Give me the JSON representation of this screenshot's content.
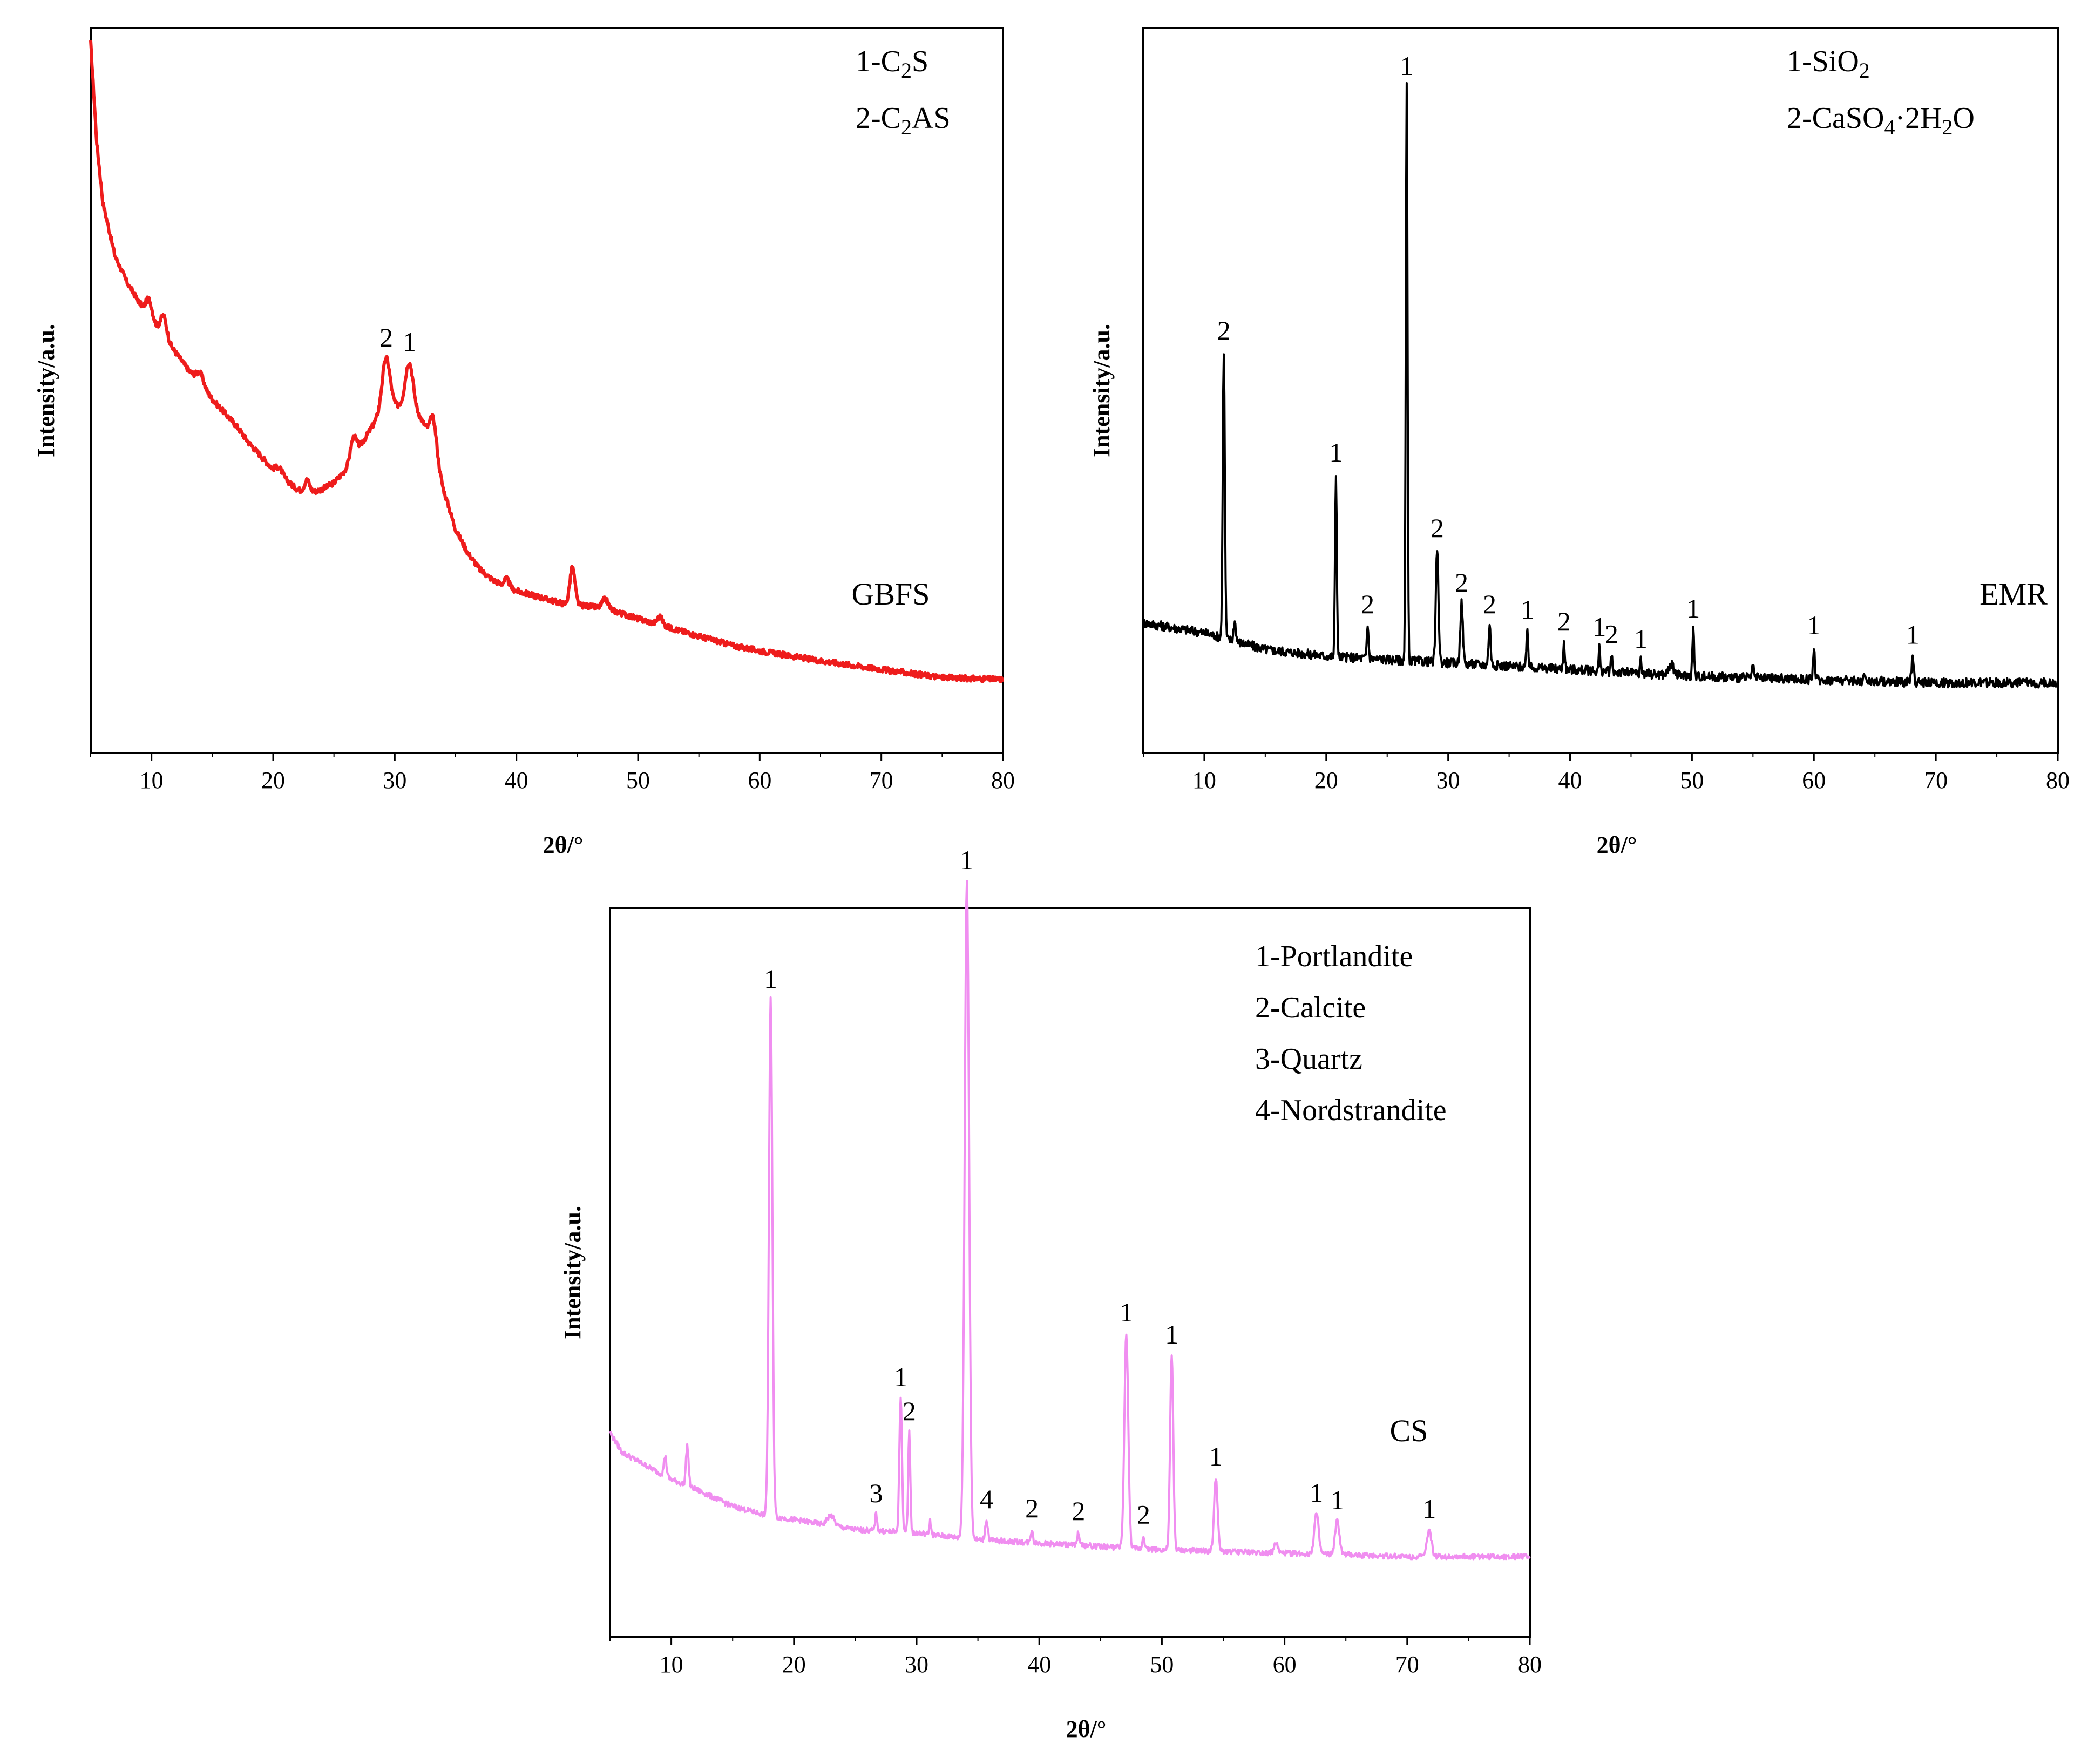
{
  "chart_data": [
    {
      "id": "gbfs",
      "type": "line",
      "sample_label": "GBFS",
      "color": "#ee1c1c",
      "xlabel": "2θ/°",
      "ylabel": "Intensity/a.u.",
      "xlim": [
        5,
        80
      ],
      "ylim": [
        0,
        1
      ],
      "xticks": [
        10,
        20,
        30,
        40,
        50,
        60,
        70,
        80
      ],
      "legend": [
        {
          "prefix": "1-C",
          "sub": "2",
          "suffix": "S"
        },
        {
          "prefix": "2-C",
          "sub": "2",
          "suffix": "AS"
        }
      ],
      "peaks": [
        {
          "x": 29.3,
          "label": "2"
        },
        {
          "x": 31.2,
          "label": "1"
        }
      ],
      "profile": [
        [
          5,
          1.0
        ],
        [
          5.5,
          0.85
        ],
        [
          6,
          0.76
        ],
        [
          7,
          0.68
        ],
        [
          8,
          0.64
        ],
        [
          9,
          0.61
        ],
        [
          10,
          0.585
        ],
        [
          11,
          0.56
        ],
        [
          12,
          0.535
        ],
        [
          13,
          0.51
        ],
        [
          14,
          0.49
        ],
        [
          15,
          0.465
        ],
        [
          16,
          0.445
        ],
        [
          17,
          0.425
        ],
        [
          18,
          0.4
        ],
        [
          19,
          0.38
        ],
        [
          20,
          0.36
        ],
        [
          21,
          0.345
        ],
        [
          22,
          0.33
        ],
        [
          23,
          0.325
        ],
        [
          24,
          0.33
        ],
        [
          25,
          0.34
        ],
        [
          26,
          0.36
        ],
        [
          27,
          0.39
        ],
        [
          28,
          0.42
        ],
        [
          29,
          0.45
        ],
        [
          30,
          0.455
        ],
        [
          31,
          0.455
        ],
        [
          32,
          0.44
        ],
        [
          33,
          0.41
        ],
        [
          34,
          0.33
        ],
        [
          35,
          0.27
        ],
        [
          36,
          0.235
        ],
        [
          37,
          0.21
        ],
        [
          38,
          0.195
        ],
        [
          39,
          0.185
        ],
        [
          40,
          0.178
        ],
        [
          42,
          0.168
        ],
        [
          44,
          0.158
        ],
        [
          46,
          0.155
        ],
        [
          48,
          0.148
        ],
        [
          50,
          0.136
        ],
        [
          52,
          0.126
        ],
        [
          55,
          0.11
        ],
        [
          58,
          0.095
        ],
        [
          60,
          0.088
        ],
        [
          65,
          0.073
        ],
        [
          70,
          0.06
        ],
        [
          75,
          0.048
        ],
        [
          80,
          0.045
        ]
      ],
      "bumps": [
        [
          9.8,
          0.025,
          0.35
        ],
        [
          11,
          0.03,
          0.35
        ],
        [
          14,
          0.015,
          0.4
        ],
        [
          20.5,
          0.01,
          0.4
        ],
        [
          22.8,
          0.018,
          0.3
        ],
        [
          26.6,
          0.03,
          0.35
        ],
        [
          29.3,
          0.075,
          0.45
        ],
        [
          31.2,
          0.068,
          0.45
        ],
        [
          33.2,
          0.04,
          0.35
        ],
        [
          39.2,
          0.012,
          0.3
        ],
        [
          44.6,
          0.055,
          0.3
        ],
        [
          47.3,
          0.015,
          0.35
        ],
        [
          51.8,
          0.012,
          0.3
        ]
      ],
      "noise": 0.004
    },
    {
      "id": "emr",
      "type": "line",
      "sample_label": "EMR",
      "color": "#000000",
      "xlabel": "2θ/°",
      "ylabel": "Intensity/a.u.",
      "xlim": [
        5,
        80
      ],
      "ylim": [
        0,
        1
      ],
      "xticks": [
        10,
        20,
        30,
        40,
        50,
        60,
        70,
        80
      ],
      "legend": [
        {
          "prefix": "1-SiO",
          "sub": "2",
          "suffix": ""
        },
        {
          "prefix": "2-CaSO",
          "sub": "4",
          "suffix": "·2H",
          "sub2": "2",
          "suffix2": "O"
        }
      ],
      "peaks": [
        {
          "x": 11.6,
          "label": "2"
        },
        {
          "x": 20.8,
          "label": "1"
        },
        {
          "x": 23.4,
          "label": "2"
        },
        {
          "x": 26.6,
          "label": "1"
        },
        {
          "x": 29.1,
          "label": "2"
        },
        {
          "x": 31.1,
          "label": "2"
        },
        {
          "x": 33.4,
          "label": "2"
        },
        {
          "x": 36.5,
          "label": "1"
        },
        {
          "x": 39.5,
          "label": "2"
        },
        {
          "x": 42.4,
          "label": "1"
        },
        {
          "x": 43.4,
          "label": "2"
        },
        {
          "x": 45.8,
          "label": "1"
        },
        {
          "x": 50.1,
          "label": "1"
        },
        {
          "x": 60.0,
          "label": "1"
        },
        {
          "x": 68.1,
          "label": "1"
        }
      ],
      "profile": [
        [
          5,
          0.13
        ],
        [
          10,
          0.115
        ],
        [
          15,
          0.09
        ],
        [
          20,
          0.08
        ],
        [
          25,
          0.075
        ],
        [
          30,
          0.07
        ],
        [
          40,
          0.06
        ],
        [
          50,
          0.05
        ],
        [
          60,
          0.045
        ],
        [
          70,
          0.04
        ],
        [
          80,
          0.04
        ]
      ],
      "bumps": [
        [
          11.6,
          0.43,
          0.12
        ],
        [
          12.5,
          0.03,
          0.12
        ],
        [
          20.8,
          0.275,
          0.1
        ],
        [
          23.4,
          0.05,
          0.1
        ],
        [
          26.6,
          0.86,
          0.1
        ],
        [
          29.1,
          0.17,
          0.15
        ],
        [
          31.1,
          0.09,
          0.15
        ],
        [
          33.4,
          0.06,
          0.12
        ],
        [
          36.5,
          0.055,
          0.1
        ],
        [
          39.5,
          0.04,
          0.1
        ],
        [
          42.4,
          0.035,
          0.08
        ],
        [
          43.4,
          0.025,
          0.08
        ],
        [
          45.8,
          0.02,
          0.08
        ],
        [
          48.3,
          0.015,
          0.3
        ],
        [
          50.1,
          0.07,
          0.1
        ],
        [
          55,
          0.015,
          0.1
        ],
        [
          60.0,
          0.05,
          0.1
        ],
        [
          64.2,
          0.012,
          0.1
        ],
        [
          68.1,
          0.04,
          0.12
        ]
      ],
      "noise": 0.007
    },
    {
      "id": "cs",
      "type": "line",
      "sample_label": "CS",
      "color": "#f08ef0",
      "xlabel": "2θ/°",
      "ylabel": "Intensity/a.u.",
      "xlim": [
        5,
        80
      ],
      "ylim": [
        0,
        1
      ],
      "xticks": [
        10,
        20,
        30,
        40,
        50,
        60,
        70,
        80
      ],
      "legend": [
        {
          "prefix": "1-Portlandite",
          "sub": "",
          "suffix": ""
        },
        {
          "prefix": "2-Calcite",
          "sub": "",
          "suffix": ""
        },
        {
          "prefix": "3-Quartz",
          "sub": "",
          "suffix": ""
        },
        {
          "prefix": "4-Nordstrandite",
          "sub": "",
          "suffix": ""
        }
      ],
      "peaks": [
        {
          "x": 18.1,
          "label": "1"
        },
        {
          "x": 26.7,
          "label": "3"
        },
        {
          "x": 28.7,
          "label": "1"
        },
        {
          "x": 29.4,
          "label": "2"
        },
        {
          "x": 34.1,
          "label": "1"
        },
        {
          "x": 35.7,
          "label": "4"
        },
        {
          "x": 39.4,
          "label": "2"
        },
        {
          "x": 43.2,
          "label": "2"
        },
        {
          "x": 47.1,
          "label": "1"
        },
        {
          "x": 48.5,
          "label": "2"
        },
        {
          "x": 50.8,
          "label": "1"
        },
        {
          "x": 54.4,
          "label": "1"
        },
        {
          "x": 62.6,
          "label": "1"
        },
        {
          "x": 64.3,
          "label": "1"
        },
        {
          "x": 71.8,
          "label": "1"
        }
      ],
      "profile": [
        [
          5,
          0.24
        ],
        [
          6,
          0.21
        ],
        [
          8,
          0.19
        ],
        [
          10,
          0.17
        ],
        [
          12,
          0.155
        ],
        [
          15,
          0.13
        ],
        [
          18,
          0.115
        ],
        [
          20,
          0.11
        ],
        [
          25,
          0.095
        ],
        [
          30,
          0.09
        ],
        [
          35,
          0.08
        ],
        [
          40,
          0.075
        ],
        [
          45,
          0.07
        ],
        [
          50,
          0.065
        ],
        [
          60,
          0.06
        ],
        [
          70,
          0.055
        ],
        [
          80,
          0.055
        ]
      ],
      "bumps": [
        [
          9.5,
          0.03,
          0.15
        ],
        [
          11.3,
          0.06,
          0.15
        ],
        [
          18.1,
          0.77,
          0.2
        ],
        [
          23,
          0.015,
          0.4
        ],
        [
          26.7,
          0.025,
          0.12
        ],
        [
          28.7,
          0.2,
          0.15
        ],
        [
          29.4,
          0.15,
          0.12
        ],
        [
          31.1,
          0.02,
          0.1
        ],
        [
          34.1,
          0.98,
          0.25
        ],
        [
          35.7,
          0.03,
          0.15
        ],
        [
          39.4,
          0.02,
          0.12
        ],
        [
          43.2,
          0.02,
          0.12
        ],
        [
          47.1,
          0.32,
          0.22
        ],
        [
          48.5,
          0.02,
          0.12
        ],
        [
          50.8,
          0.29,
          0.18
        ],
        [
          54.4,
          0.11,
          0.2
        ],
        [
          59.3,
          0.015,
          0.2
        ],
        [
          62.6,
          0.06,
          0.25
        ],
        [
          64.3,
          0.05,
          0.25
        ],
        [
          71.8,
          0.04,
          0.25
        ]
      ],
      "noise": 0.004
    }
  ]
}
